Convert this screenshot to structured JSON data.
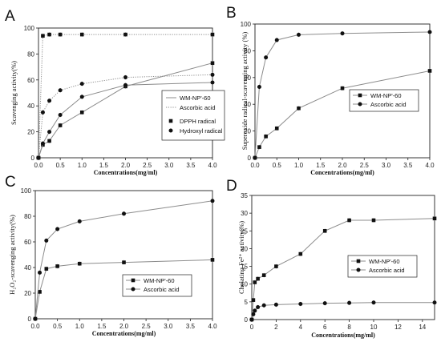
{
  "colors": {
    "axis": "#222222",
    "series_line": "#8c8c8c",
    "dotted_line": "#8c8c8c",
    "marker": "#111111"
  },
  "chart_data": [
    {
      "panel": "A",
      "type": "line",
      "xlabel": "Concentrations(mg/ml)",
      "ylabel": "Scavenging activity(%)",
      "xlim": [
        0,
        4.0
      ],
      "ylim": [
        0,
        100
      ],
      "xticks": [
        "0.0",
        "0.5",
        "1.0",
        "1.5",
        "2.0",
        "2.5",
        "3.0",
        "3.5",
        "4.0"
      ],
      "yticks": [
        "0",
        "20",
        "40",
        "60",
        "80",
        "100"
      ],
      "legend": {
        "position": "center-right",
        "line_entries": [
          "WM-NP'-60",
          "Ascorbic acid"
        ],
        "marker_entries": [
          "DPPH radical",
          "Hydroxyl radical"
        ]
      },
      "series": [
        {
          "line": "solid",
          "marker": "square",
          "x": [
            0,
            0.1,
            0.25,
            0.5,
            1.0,
            2.0,
            4.0
          ],
          "y": [
            0,
            10,
            13,
            25,
            35,
            55,
            73
          ]
        },
        {
          "line": "dotted",
          "marker": "square",
          "x": [
            0,
            0.1,
            0.25,
            0.5,
            1.0,
            2.0,
            4.0
          ],
          "y": [
            0,
            94,
            95,
            95,
            95,
            95,
            95
          ]
        },
        {
          "line": "solid",
          "marker": "circle",
          "x": [
            0,
            0.1,
            0.25,
            0.5,
            1.0,
            2.0,
            4.0
          ],
          "y": [
            0,
            11,
            20,
            33,
            47,
            56,
            58
          ]
        },
        {
          "line": "dotted",
          "marker": "circle",
          "x": [
            0,
            0.1,
            0.25,
            0.5,
            1.0,
            2.0,
            4.0
          ],
          "y": [
            0,
            35,
            44,
            52,
            57,
            62,
            64
          ]
        }
      ]
    },
    {
      "panel": "B",
      "type": "line",
      "xlabel": "Concentrations(mg/ml)",
      "ylabel": "Superoxide radical-scavenging activity (%)",
      "xlim": [
        0,
        4.0
      ],
      "ylim": [
        0,
        100
      ],
      "xticks": [
        "0.0",
        "0.5",
        "1.0",
        "1.5",
        "2.0",
        "2.5",
        "3.0",
        "3.5",
        "4.0"
      ],
      "yticks": [
        "0",
        "20",
        "40",
        "60",
        "80",
        "100"
      ],
      "legend": {
        "position": "center-right"
      },
      "series": [
        {
          "name": "WM-NP'-60",
          "marker": "square",
          "x": [
            0,
            0.1,
            0.25,
            0.5,
            1.0,
            2.0,
            4.0
          ],
          "y": [
            0,
            8,
            16,
            22,
            37,
            52,
            65
          ]
        },
        {
          "name": "Ascorbic acid",
          "marker": "circle",
          "x": [
            0,
            0.1,
            0.25,
            0.5,
            1.0,
            2.0,
            4.0
          ],
          "y": [
            0,
            53,
            75,
            88,
            92,
            93,
            94
          ]
        }
      ]
    },
    {
      "panel": "C",
      "type": "line",
      "xlabel": "Concentrations(mg/ml)",
      "ylabel": "H₂O₂-scavenging activity(%)",
      "xlim": [
        0,
        4.0
      ],
      "ylim": [
        0,
        100
      ],
      "xticks": [
        "0.0",
        "0.5",
        "1.0",
        "1.5",
        "2.0",
        "2.5",
        "3.0",
        "3.5",
        "4.0"
      ],
      "yticks": [
        "0",
        "20",
        "40",
        "60",
        "80",
        "100"
      ],
      "legend": {
        "position": "center-right"
      },
      "series": [
        {
          "name": "WM-NP'-60",
          "marker": "square",
          "x": [
            0,
            0.1,
            0.25,
            0.5,
            1.0,
            2.0,
            4.0
          ],
          "y": [
            0,
            21,
            39,
            41,
            43,
            44,
            46
          ]
        },
        {
          "name": "Ascorbic acid",
          "marker": "circle",
          "x": [
            0,
            0.1,
            0.25,
            0.5,
            1.0,
            2.0,
            4.0
          ],
          "y": [
            0,
            36,
            61,
            70,
            76,
            82,
            92
          ]
        }
      ]
    },
    {
      "panel": "D",
      "type": "line",
      "xlabel": "Concentrations(mg/ml)",
      "ylabel": "Chelating Fe²⁺ activity(%)",
      "xlim": [
        0,
        15
      ],
      "ylim": [
        0,
        35
      ],
      "xticks": [
        "0",
        "2",
        "4",
        "6",
        "8",
        "10",
        "12",
        "14"
      ],
      "yticks": [
        "0",
        "5",
        "10",
        "15",
        "20",
        "25",
        "30",
        "35"
      ],
      "legend": {
        "position": "center-right"
      },
      "series": [
        {
          "name": "WM-NP'-60",
          "marker": "square",
          "x": [
            0,
            0.125,
            0.25,
            0.5,
            1,
            2,
            4,
            6,
            8,
            10,
            15
          ],
          "y": [
            0,
            5.5,
            10.5,
            11.5,
            12.5,
            15,
            18.5,
            25,
            28,
            28,
            28.5
          ]
        },
        {
          "name": "Ascorbic acid",
          "marker": "circle",
          "x": [
            0,
            0.125,
            0.25,
            0.5,
            1,
            2,
            4,
            6,
            8,
            10,
            15
          ],
          "y": [
            0,
            1.5,
            2.5,
            3.5,
            4,
            4.2,
            4.4,
            4.6,
            4.7,
            4.8,
            4.8
          ]
        }
      ]
    }
  ],
  "panel_letters": [
    "A",
    "B",
    "C",
    "D"
  ]
}
